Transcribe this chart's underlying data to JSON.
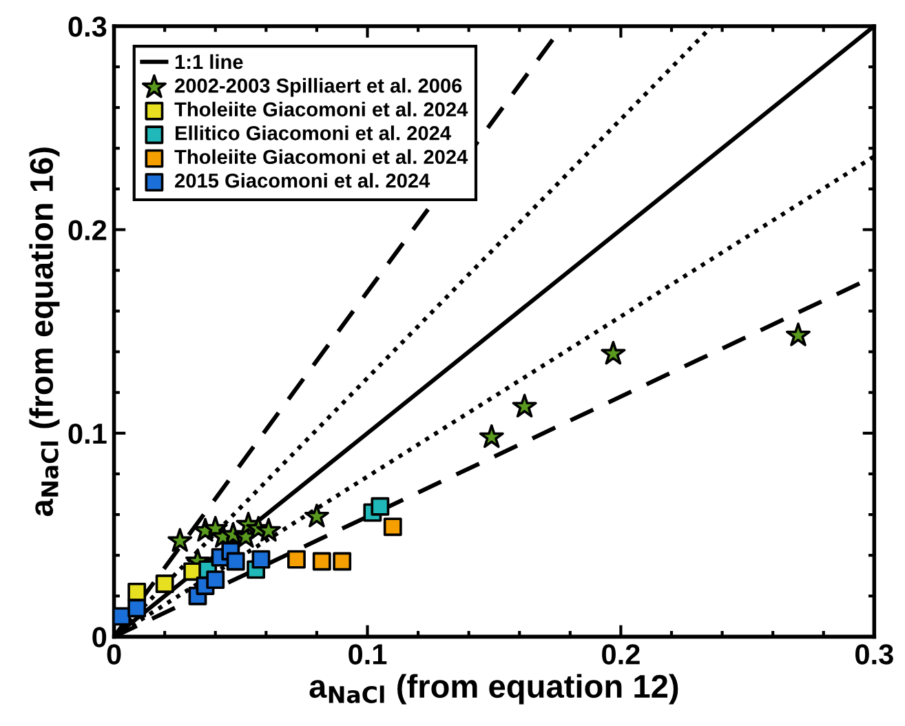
{
  "chart_data": {
    "type": "scatter",
    "xlabel": "a$_{NaCl}$ (from equation 12)",
    "ylabel": "a$_{NaCl}$ (from equation 16)",
    "xlim": [
      0,
      0.3
    ],
    "ylim": [
      0,
      0.3
    ],
    "xticks": [
      0,
      0.1,
      0.2,
      0.3
    ],
    "yticks": [
      0,
      0.1,
      0.2,
      0.3
    ],
    "grid": false,
    "legend": "top left",
    "series": [
      {
        "type": "line",
        "name": "1:1 line",
        "color": "#000000",
        "line_style": "solid",
        "x": [
          0,
          0.3
        ],
        "values": [
          0,
          0.3
        ]
      },
      {
        "type": "line",
        "color": "#000000",
        "line_style": "dashed",
        "x": [
          0,
          0.177
        ],
        "values": [
          0,
          0.3
        ]
      },
      {
        "type": "line",
        "color": "#000000",
        "line_style": "dotted",
        "x": [
          0,
          0.236
        ],
        "values": [
          0,
          0.3
        ]
      },
      {
        "type": "line",
        "color": "#000000",
        "line_style": "dotted",
        "x": [
          0,
          0.3
        ],
        "values": [
          0,
          0.236
        ]
      },
      {
        "type": "line",
        "color": "#000000",
        "line_style": "dashed",
        "x": [
          0,
          0.3
        ],
        "values": [
          0,
          0.177
        ]
      },
      {
        "name": "2002-2003 Spilliaert et al. 2006",
        "color": "#5a9a1e",
        "marker": "star",
        "x": [
          0.27,
          0.197,
          0.162,
          0.149,
          0.08,
          0.026,
          0.033,
          0.036,
          0.04,
          0.043,
          0.047,
          0.052,
          0.053,
          0.057,
          0.061
        ],
        "values": [
          0.148,
          0.139,
          0.113,
          0.098,
          0.059,
          0.047,
          0.037,
          0.052,
          0.053,
          0.049,
          0.05,
          0.049,
          0.055,
          0.053,
          0.052
        ]
      },
      {
        "name": "Tholeiite Giacomoni et al. 2024",
        "color": "#e6e020",
        "marker": "square",
        "x": [
          0.009,
          0.02,
          0.031
        ],
        "values": [
          0.022,
          0.026,
          0.032
        ]
      },
      {
        "name": "Ellitico Giacomoni et al. 2024",
        "color": "#20b8b8",
        "marker": "square",
        "x": [
          0.102,
          0.105,
          0.037,
          0.056
        ],
        "values": [
          0.061,
          0.064,
          0.033,
          0.033
        ]
      },
      {
        "name": "Tholeiite Giacomoni et al. 2024",
        "color": "#f5a000",
        "marker": "square",
        "x": [
          0.11,
          0.072,
          0.082,
          0.09
        ],
        "values": [
          0.054,
          0.038,
          0.037,
          0.037
        ]
      },
      {
        "name": "2015 Giacomoni et al. 2024",
        "color": "#1a6fd8",
        "marker": "square",
        "x": [
          0.003,
          0.009,
          0.033,
          0.036,
          0.04,
          0.042,
          0.046,
          0.048,
          0.058
        ],
        "values": [
          0.01,
          0.014,
          0.02,
          0.025,
          0.028,
          0.039,
          0.042,
          0.037,
          0.038
        ]
      }
    ]
  }
}
